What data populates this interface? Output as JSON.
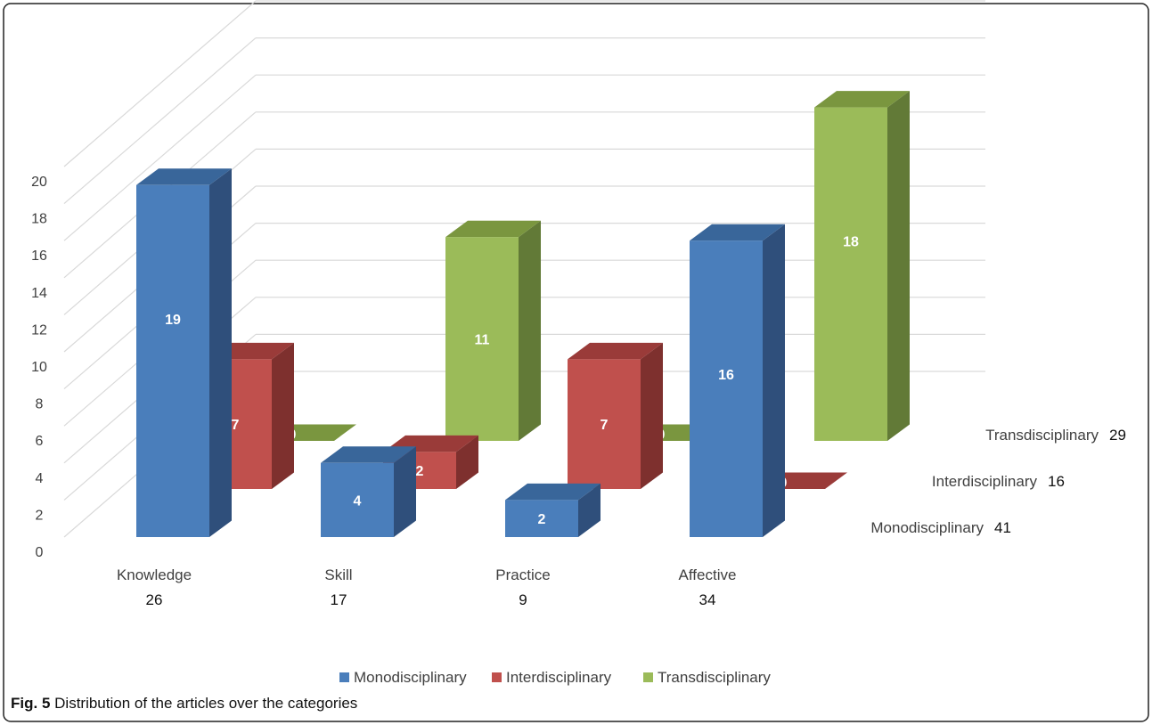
{
  "caption": {
    "label": "Fig. 5",
    "text": "Distribution of the articles over the categories"
  },
  "chart_data": {
    "type": "bar",
    "ylim": [
      0,
      20
    ],
    "yticks": [
      0,
      2,
      4,
      6,
      8,
      10,
      12,
      14,
      16,
      18,
      20
    ],
    "categories": [
      "Knowledge",
      "Skill",
      "Practice",
      "Affective"
    ],
    "category_totals": [
      "26",
      "17",
      "9",
      "34"
    ],
    "series": [
      {
        "name": "Monodisciplinary",
        "total": "41",
        "values": [
          19,
          4,
          2,
          16
        ]
      },
      {
        "name": "Interdisciplinary",
        "total": "16",
        "values": [
          7,
          2,
          7,
          0
        ]
      },
      {
        "name": "Transdisciplinary",
        "total": "29",
        "values": [
          0,
          11,
          0,
          18
        ]
      }
    ],
    "colors": {
      "Monodisciplinary": {
        "front": "#4a7ebb",
        "side": "#2f4f7b",
        "top": "#39669a"
      },
      "Interdisciplinary": {
        "front": "#c0504d",
        "side": "#7e302e",
        "top": "#9a3b39"
      },
      "Transdisciplinary": {
        "front": "#9bbb59",
        "side": "#627a37",
        "top": "#7a963f"
      }
    },
    "legend_position": "bottom"
  }
}
